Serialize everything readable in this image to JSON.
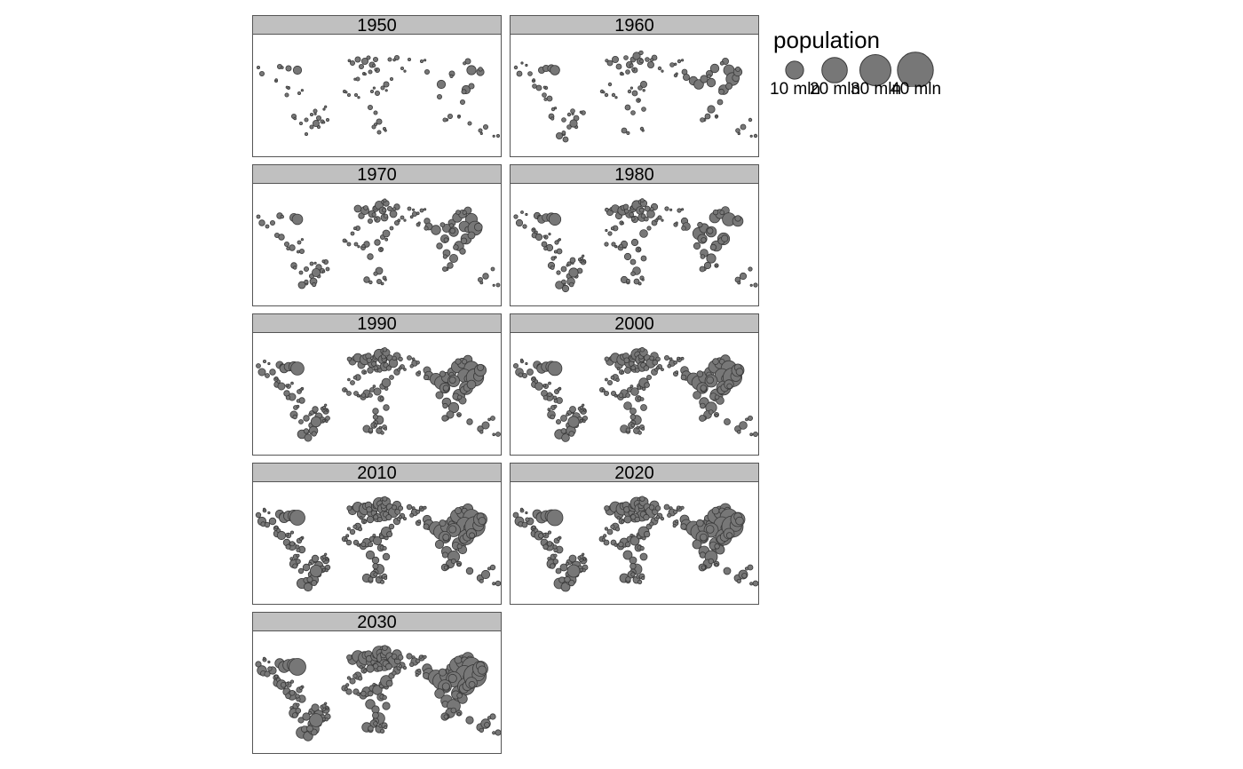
{
  "colors": {
    "bubble_fill": "#777777",
    "bubble_stroke": "#3a3a3a",
    "header_fill": "#c0c0c0",
    "frame": "#555555"
  },
  "panels": [
    {
      "year": "1950",
      "scale": 0.52,
      "density": 0.55
    },
    {
      "year": "1960",
      "scale": 0.6,
      "density": 0.62
    },
    {
      "year": "1970",
      "scale": 0.66,
      "density": 0.68
    },
    {
      "year": "1980",
      "scale": 0.74,
      "density": 0.74
    },
    {
      "year": "1990",
      "scale": 0.82,
      "density": 0.82
    },
    {
      "year": "2000",
      "scale": 0.88,
      "density": 0.88
    },
    {
      "year": "2010",
      "scale": 0.94,
      "density": 0.94
    },
    {
      "year": "2020",
      "scale": 1.0,
      "density": 1.0
    },
    {
      "year": "2030",
      "scale": 1.06,
      "density": 1.0
    }
  ],
  "legend": {
    "title": "population",
    "items": [
      {
        "label": "10 mln",
        "value": 10
      },
      {
        "label": "20 mln",
        "value": 20
      },
      {
        "label": "30 mln",
        "value": 30
      },
      {
        "label": "40 mln",
        "value": 40
      }
    ]
  }
}
